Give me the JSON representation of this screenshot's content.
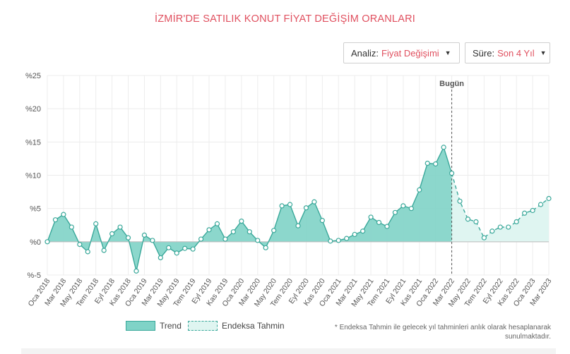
{
  "title": "İZMİR'DE SATILIK KONUT FİYAT DEĞİŞİM ORANLARI",
  "controls": {
    "analiz_label": "Analiz:",
    "analiz_value": "Fiyat Değişimi",
    "sure_label": "Süre:",
    "sure_value": "Son 4 Yıl"
  },
  "legend": {
    "trend": "Trend",
    "tahmin": "Endeksa Tahmin"
  },
  "note": "* Endeksa Tahmin ile gelecek yıl tahminleri anlık olarak hesaplanarak sunulmaktadır.",
  "colors": {
    "accent": "#e0505f",
    "trend_fill": "#7fd3c7",
    "trend_line": "#3aa89a",
    "forecast_fill": "#dff5f1"
  },
  "chart_data": {
    "type": "area",
    "title": "",
    "xlabel": "",
    "ylabel": "",
    "ylim": [
      -5,
      25
    ],
    "yticks": [
      {
        "v": 25,
        "label": "%25"
      },
      {
        "v": 20,
        "label": "%20"
      },
      {
        "v": 15,
        "label": "%15"
      },
      {
        "v": 10,
        "label": "%10"
      },
      {
        "v": 5,
        "label": "%5"
      },
      {
        "v": 0,
        "label": "%0"
      },
      {
        "v": -5,
        "label": "%-5"
      }
    ],
    "grid": true,
    "today_label": "Bugün",
    "today_index": 26,
    "x_labels": [
      "Oca 2018",
      "Mar 2018",
      "May 2018",
      "Tem 2018",
      "Eyl 2018",
      "Kas 2018",
      "Oca 2019",
      "Mar 2019",
      "May 2019",
      "Tem 2019",
      "Eyl 2019",
      "Kas 2019",
      "Oca 2020",
      "Mar 2020",
      "May 2020",
      "Tem 2020",
      "Eyl 2020",
      "Kas 2020",
      "Oca 2021",
      "Mar 2021",
      "May 2021",
      "Tem 2021",
      "Eyl 2021",
      "Kas 2021",
      "Oca 2022",
      "Mar 2022",
      "May 2022",
      "Tem 2022",
      "Eyl 2022",
      "Kas 2022",
      "Oca 2023",
      "Mar 2023"
    ],
    "series": [
      {
        "name": "Trend",
        "values": [
          0,
          3.3,
          4.1,
          2.2,
          -0.4,
          -1.5,
          2.7,
          -1.3,
          1.2,
          2.2,
          0.6,
          -4.4,
          1.0,
          0.2,
          -2.4,
          -0.9,
          -1.7,
          -1.0,
          -1.1,
          0.4,
          1.8,
          2.7,
          0.4,
          1.5,
          3.1,
          1.5,
          0.2,
          -0.9,
          1.7,
          5.4,
          5.6,
          2.4,
          5.1,
          6.0,
          3.2,
          0.1,
          0.2,
          0.5,
          1.1,
          1.6,
          3.7,
          2.9,
          2.3,
          4.4,
          5.4,
          5.0,
          7.8,
          11.8,
          11.7,
          14.2,
          10.3
        ]
      },
      {
        "name": "Endeksa Tahmin",
        "values": [
          10.3,
          6.1,
          3.4,
          3.0,
          0.6,
          1.6,
          2.2,
          2.2,
          3.0,
          4.3,
          4.7,
          5.6,
          6.5
        ]
      }
    ]
  }
}
